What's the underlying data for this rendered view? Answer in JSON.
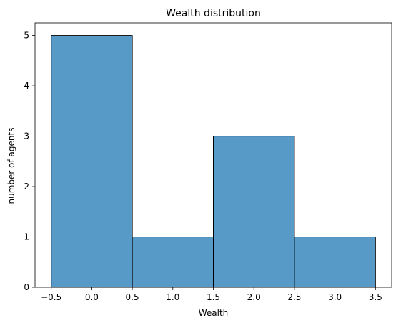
{
  "chart_data": {
    "type": "bar",
    "title": "Wealth distribution",
    "xlabel": "Wealth",
    "ylabel": "number of agents",
    "bins": [
      {
        "start": -0.5,
        "end": 0.5,
        "count": 5
      },
      {
        "start": 0.5,
        "end": 1.5,
        "count": 1
      },
      {
        "start": 1.5,
        "end": 2.5,
        "count": 3
      },
      {
        "start": 2.5,
        "end": 3.5,
        "count": 1
      }
    ],
    "xlim": [
      -0.7,
      3.7
    ],
    "ylim": [
      0,
      5.25
    ],
    "xticks": [
      -0.5,
      0.0,
      0.5,
      1.0,
      1.5,
      2.0,
      2.5,
      3.0,
      3.5
    ],
    "xtick_labels": [
      "−0.5",
      "0.0",
      "0.5",
      "1.0",
      "1.5",
      "2.0",
      "2.5",
      "3.0",
      "3.5"
    ],
    "yticks": [
      0,
      1,
      2,
      3,
      4,
      5
    ],
    "ytick_labels": [
      "0",
      "1",
      "2",
      "3",
      "4",
      "5"
    ],
    "grid": false,
    "colors": {
      "bar_fill": "#5799c7",
      "bar_edge": "#000000"
    }
  }
}
